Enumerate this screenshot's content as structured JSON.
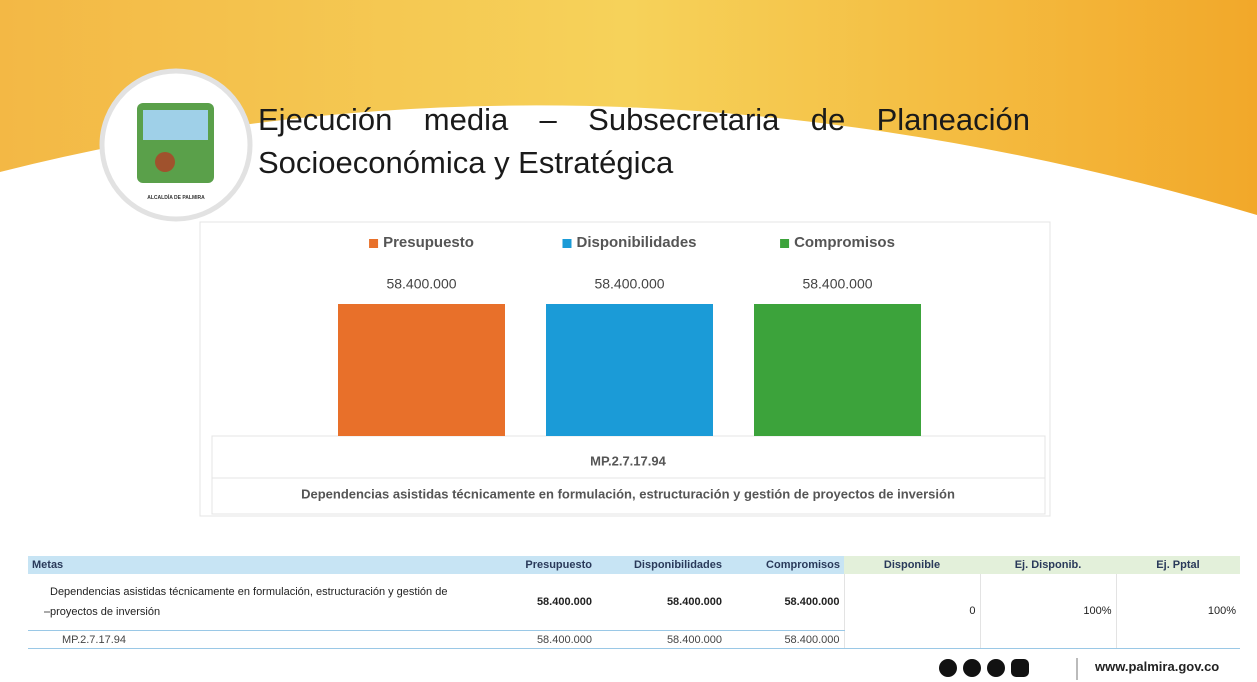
{
  "header": {
    "title": "Ejecución media – Subsecretaria de Planeación Socioeconómica y Estratégica",
    "logo_text": "ALCALDÍA DE PALMIRA"
  },
  "chart_data": {
    "type": "bar",
    "categories": [
      "MP.2.7.17.94"
    ],
    "category_group": "Dependencias asistidas técnicamente en formulación, estructuración y gestión de proyectos de inversión",
    "series": [
      {
        "name": "Presupuesto",
        "color": "#e8702a",
        "values": [
          58400000
        ],
        "value_labels": [
          "58.400.000"
        ]
      },
      {
        "name": "Disponibilidades",
        "color": "#1b9bd7",
        "values": [
          58400000
        ],
        "value_labels": [
          "58.400.000"
        ]
      },
      {
        "name": "Compromisos",
        "color": "#3ca33b",
        "values": [
          58400000
        ],
        "value_labels": [
          "58.400.000"
        ]
      }
    ],
    "legend": "top"
  },
  "table": {
    "header": [
      "Metas",
      "Presupuesto",
      "Disponibilidades",
      "Compromisos",
      "Disponible",
      "Ej. Disponib.",
      "Ej. Pptal"
    ],
    "rows": [
      [
        "Dependencias asistidas técnicamente en formulación, estructuración y gestión de proyectos de inversión",
        "58.400.000",
        "58.400.000",
        "58.400.000",
        "0",
        "100%",
        "100%"
      ],
      [
        "MP.2.7.17.94",
        "58.400.000",
        "58.400.000",
        "58.400.000"
      ]
    ]
  },
  "footer": {
    "url": "www.palmira.gov.co"
  }
}
